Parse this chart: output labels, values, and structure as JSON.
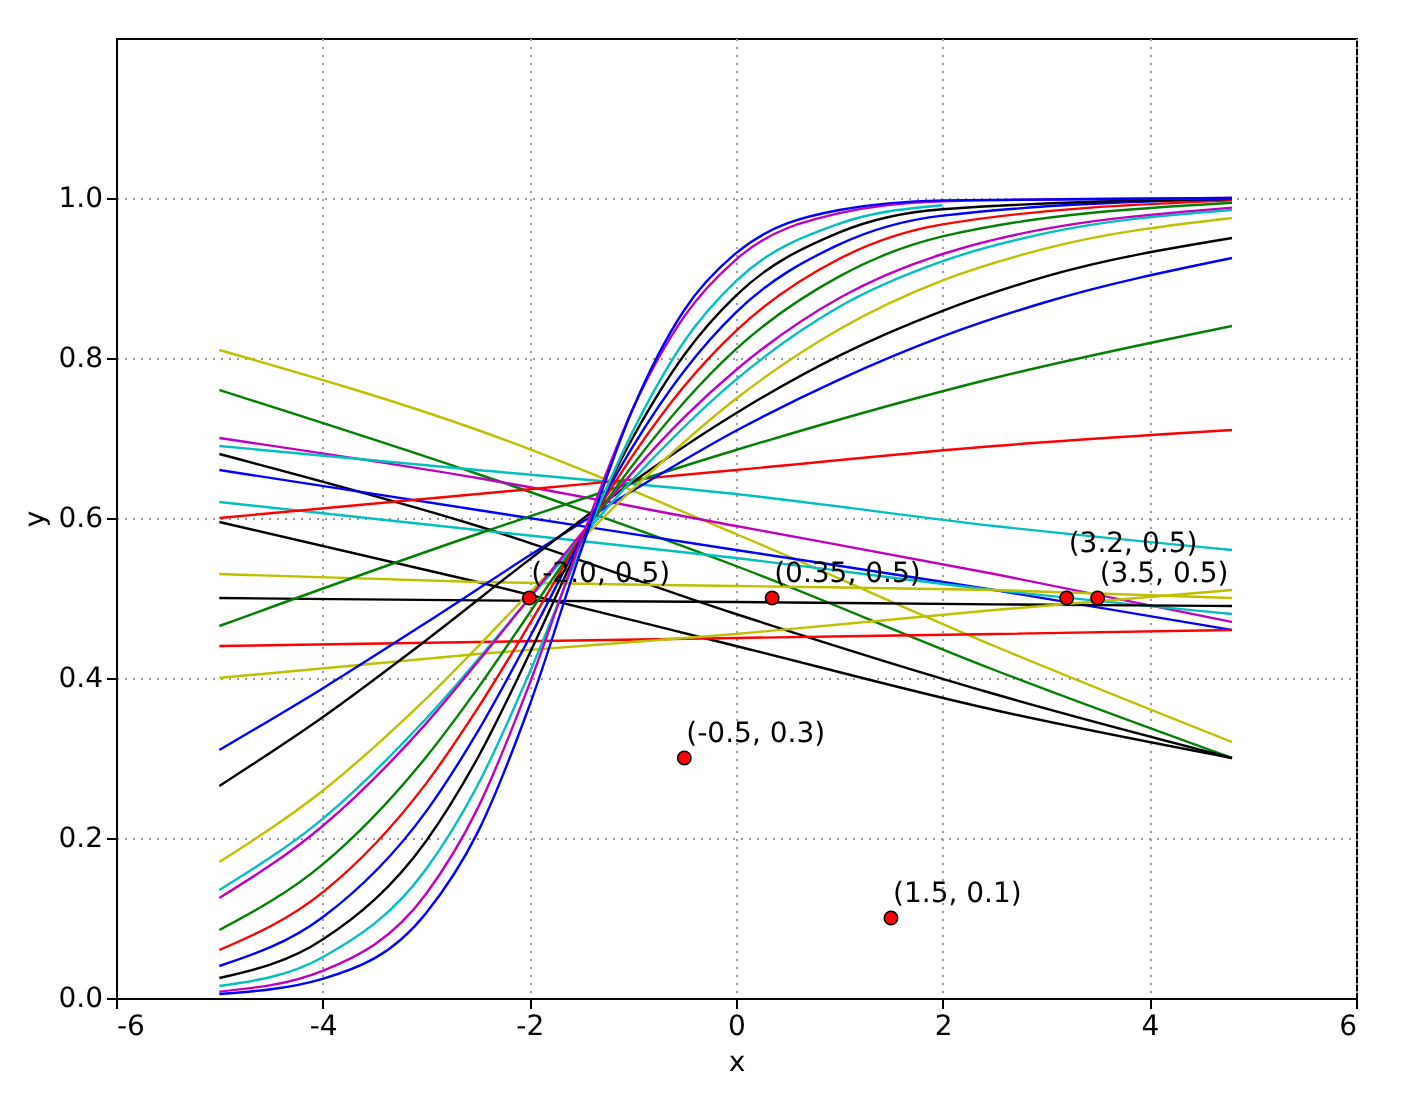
{
  "chart_data": {
    "type": "line",
    "xlabel": "x",
    "ylabel": "y",
    "xlim": [
      -6,
      6
    ],
    "ylim": [
      0,
      1.2
    ],
    "xticks": [
      -6,
      -4,
      -2,
      0,
      2,
      4,
      6
    ],
    "yticks": [
      {
        "value": 0,
        "label": "0.0"
      },
      {
        "value": 0.2,
        "label": "0.2"
      },
      {
        "value": 0.4,
        "label": "0.4"
      },
      {
        "value": 0.6,
        "label": "0.6"
      },
      {
        "value": 0.8,
        "label": "0.8"
      },
      {
        "value": 1,
        "label": "1.0"
      }
    ],
    "grid": true,
    "series": [
      {
        "color": "#bfbf00",
        "x": [
          -5,
          -2.5,
          0,
          2.5,
          4.8
        ],
        "values": [
          0.81,
          0.71,
          0.58,
          0.44,
          0.32
        ]
      },
      {
        "color": "#008000",
        "x": [
          -5,
          -2.5,
          0,
          2.5,
          4.8
        ],
        "values": [
          0.76,
          0.655,
          0.54,
          0.41,
          0.3
        ]
      },
      {
        "color": "#bf00bf",
        "x": [
          -5,
          -2.5,
          0,
          2.5,
          4.8
        ],
        "values": [
          0.7,
          0.65,
          0.59,
          0.53,
          0.47
        ]
      },
      {
        "color": "#00bfbf",
        "x": [
          -5,
          -2.5,
          0,
          2.5,
          4.8
        ],
        "values": [
          0.69,
          0.66,
          0.63,
          0.59,
          0.56
        ]
      },
      {
        "color": "#000000",
        "x": [
          -5,
          -2.5,
          0,
          2.5,
          4.8
        ],
        "values": [
          0.68,
          0.59,
          0.48,
          0.38,
          0.3
        ]
      },
      {
        "color": "#0000ff",
        "x": [
          -5,
          -2.5,
          0,
          2.5,
          4.8
        ],
        "values": [
          0.66,
          0.61,
          0.56,
          0.51,
          0.46
        ]
      },
      {
        "color": "#00bfbf",
        "x": [
          -5,
          -2.5,
          0,
          2.5,
          4.8
        ],
        "values": [
          0.62,
          0.585,
          0.55,
          0.51,
          0.48
        ]
      },
      {
        "color": "#ff0000",
        "x": [
          -5,
          -2.5,
          0,
          2.5,
          4.8
        ],
        "values": [
          0.6,
          0.63,
          0.66,
          0.69,
          0.71
        ]
      },
      {
        "color": "#000000",
        "x": [
          -5,
          -2.5,
          0,
          2.5,
          4.8
        ],
        "values": [
          0.595,
          0.52,
          0.44,
          0.36,
          0.3
        ]
      },
      {
        "color": "#bfbf00",
        "x": [
          -5,
          -2.5,
          0,
          2.5,
          4.8
        ],
        "values": [
          0.53,
          0.52,
          0.515,
          0.51,
          0.5
        ]
      },
      {
        "color": "#000000",
        "x": [
          -5,
          -2.5,
          0,
          2.5,
          4.8
        ],
        "values": [
          0.5,
          0.497,
          0.495,
          0.492,
          0.49
        ]
      },
      {
        "color": "#008000",
        "x": [
          -5,
          -2.5,
          0,
          2.5,
          4.8
        ],
        "values": [
          0.465,
          0.58,
          0.685,
          0.775,
          0.84
        ]
      },
      {
        "color": "#ff0000",
        "x": [
          -5,
          -2.5,
          0,
          2.5,
          4.8
        ],
        "values": [
          0.44,
          0.445,
          0.45,
          0.455,
          0.46
        ]
      },
      {
        "color": "#bfbf00",
        "x": [
          -5,
          -2.5,
          0,
          2.5,
          4.8
        ],
        "values": [
          0.4,
          0.43,
          0.455,
          0.485,
          0.51
        ]
      },
      {
        "color": "#0000ff",
        "x": [
          -5,
          -4,
          -3,
          -2,
          -1,
          0,
          1,
          2,
          3,
          4.8
        ],
        "values": [
          0.31,
          0.387,
          0.469,
          0.553,
          0.634,
          0.709,
          0.773,
          0.827,
          0.87,
          0.925
        ]
      },
      {
        "color": "#000000",
        "x": [
          -5,
          -4,
          -3,
          -2,
          -1,
          0,
          1,
          2,
          3,
          4.8
        ],
        "values": [
          0.265,
          0.351,
          0.447,
          0.548,
          0.645,
          0.731,
          0.803,
          0.859,
          0.902,
          0.95
        ]
      },
      {
        "color": "#bfbf00",
        "x": [
          -5,
          -4,
          -3,
          -2,
          -1,
          0,
          1,
          2,
          3,
          4.8
        ],
        "values": [
          0.17,
          0.259,
          0.374,
          0.506,
          0.636,
          0.749,
          0.836,
          0.897,
          0.937,
          0.975
        ]
      },
      {
        "color": "#00bfbf",
        "x": [
          -5,
          -4,
          -3,
          -2,
          -1,
          0,
          1,
          2,
          3,
          4.8
        ],
        "values": [
          0.135,
          0.224,
          0.349,
          0.499,
          0.648,
          0.773,
          0.864,
          0.921,
          0.956,
          0.985
        ]
      },
      {
        "color": "#bf00bf",
        "x": [
          -5,
          -4,
          -3,
          -2.5,
          -2,
          -1.5,
          -1,
          -0.5,
          0,
          1,
          2,
          4.8
        ],
        "values": [
          0.125,
          0.215,
          0.343,
          0.42,
          0.5,
          0.58,
          0.657,
          0.726,
          0.785,
          0.875,
          0.93,
          0.988
        ]
      },
      {
        "color": "#008000",
        "x": [
          -5,
          -4,
          -3,
          -2.5,
          -2,
          -1.5,
          -1,
          -0.5,
          0,
          1,
          2,
          4.8
        ],
        "values": [
          0.085,
          0.167,
          0.301,
          0.387,
          0.481,
          0.576,
          0.666,
          0.745,
          0.811,
          0.902,
          0.952,
          0.994
        ]
      },
      {
        "color": "#ff0000",
        "x": [
          -5,
          -4,
          -3,
          -2.5,
          -2,
          -1.5,
          -1,
          -0.5,
          0,
          1,
          2,
          4.8
        ],
        "values": [
          0.06,
          0.132,
          0.268,
          0.362,
          0.467,
          0.576,
          0.678,
          0.765,
          0.834,
          0.924,
          0.967,
          0.997
        ]
      },
      {
        "color": "#0000ff",
        "x": [
          -5,
          -4,
          -3,
          -2.5,
          -2,
          -1.5,
          -1,
          -0.5,
          0,
          1,
          2,
          4.8
        ],
        "values": [
          0.04,
          0.101,
          0.233,
          0.333,
          0.45,
          0.574,
          0.689,
          0.784,
          0.857,
          0.942,
          0.978,
          0.999
        ]
      },
      {
        "color": "#000000",
        "x": [
          -5,
          -4,
          -3,
          -2.5,
          -2,
          -1.5,
          -1,
          -0.5,
          0,
          1,
          2,
          4.8
        ],
        "values": [
          0.025,
          0.073,
          0.196,
          0.3,
          0.43,
          0.57,
          0.7,
          0.804,
          0.878,
          0.957,
          0.986,
          0.999
        ]
      },
      {
        "color": "#00bfbf",
        "x": [
          -5,
          -4,
          -3,
          -2.5,
          -2,
          -1.5,
          -1,
          -0.5,
          0,
          1,
          2
        ],
        "values": [
          0.015,
          0.051,
          0.161,
          0.266,
          0.406,
          0.563,
          0.708,
          0.821,
          0.896,
          0.968,
          0.991
        ]
      },
      {
        "color": "#bf00bf",
        "x": [
          -5,
          -4,
          -3,
          -2.5,
          -2,
          -1.5,
          -1,
          -0.5,
          0,
          1,
          2,
          4.8
        ],
        "values": [
          0.008,
          0.034,
          0.13,
          0.237,
          0.392,
          0.572,
          0.736,
          0.852,
          0.923,
          0.981,
          0.996,
          1.0
        ]
      },
      {
        "color": "#0000ff",
        "x": [
          -5,
          -4,
          -3,
          -2.5,
          -2,
          -1.5,
          -1,
          -0.5,
          0,
          1,
          2,
          4.8
        ],
        "values": [
          0.005,
          0.024,
          0.106,
          0.207,
          0.365,
          0.559,
          0.736,
          0.86,
          0.931,
          0.985,
          0.997,
          1.0
        ]
      },
      {
        "type": "scatter",
        "marker": "circle",
        "color": "#ff0000",
        "x": [
          -2.0,
          0.35,
          -0.5,
          1.5,
          3.5,
          3.2
        ],
        "values": [
          0.5,
          0.5,
          0.3,
          0.1,
          0.5,
          0.5
        ]
      }
    ],
    "annotations": [
      {
        "text": "(-2.0, 0.5)",
        "x": -2.0,
        "y": 0.5
      },
      {
        "text": "(0.35, 0.5)",
        "x": 0.35,
        "y": 0.5
      },
      {
        "text": "(-0.5, 0.3)",
        "x": -0.5,
        "y": 0.3
      },
      {
        "text": "(1.5, 0.1)",
        "x": 1.5,
        "y": 0.1
      },
      {
        "text": "(3.5, 0.5)",
        "x": 3.5,
        "y": 0.5
      },
      {
        "text": "(3.2, 0.5)",
        "x": 3.2,
        "y": 0.5
      }
    ]
  }
}
